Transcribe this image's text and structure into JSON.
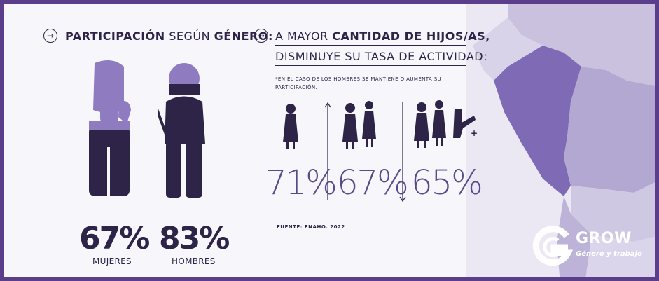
{
  "heading_left": {
    "bold_1": "PARTICIPACIÓN",
    "light": "SEGÚN",
    "bold_2": "GÉNERO:"
  },
  "heading_right": {
    "line1_light": "A MAYOR",
    "line1_bold": "CANTIDAD DE HIJOS/AS,",
    "line2": "DISMINUYE SU TASA DE ACTIVIDAD:"
  },
  "note": {
    "line1": "*EN EL CASO DE LOS HOMBRES SE MANTIENE O AUMENTA SU",
    "line2": "PARTICIPACIÓN."
  },
  "gender": {
    "women_pct": "67%",
    "women_label": "MUJERES",
    "men_pct": "83%",
    "men_label": "HOMBRES",
    "women_level": 0.67,
    "men_level": 0.83
  },
  "children_rates": [
    {
      "value": "71%"
    },
    {
      "value": "67%"
    },
    {
      "value": "65%"
    }
  ],
  "plus_sign": "+",
  "source": "FUENTE: ENAHO. 2022",
  "logo": {
    "title": "GROW",
    "subtitle": "Género y trabajo"
  },
  "colors": {
    "dark": "#2d2447",
    "purple": "#5a3e8c",
    "lavender": "#8e7bc0",
    "map_light": "#d8d3e8",
    "map_mid": "#9d8ec8"
  },
  "icons": [
    "arrow-right-icon",
    "arrow-right-icon",
    "arrow-up-icon",
    "arrow-down-icon"
  ]
}
